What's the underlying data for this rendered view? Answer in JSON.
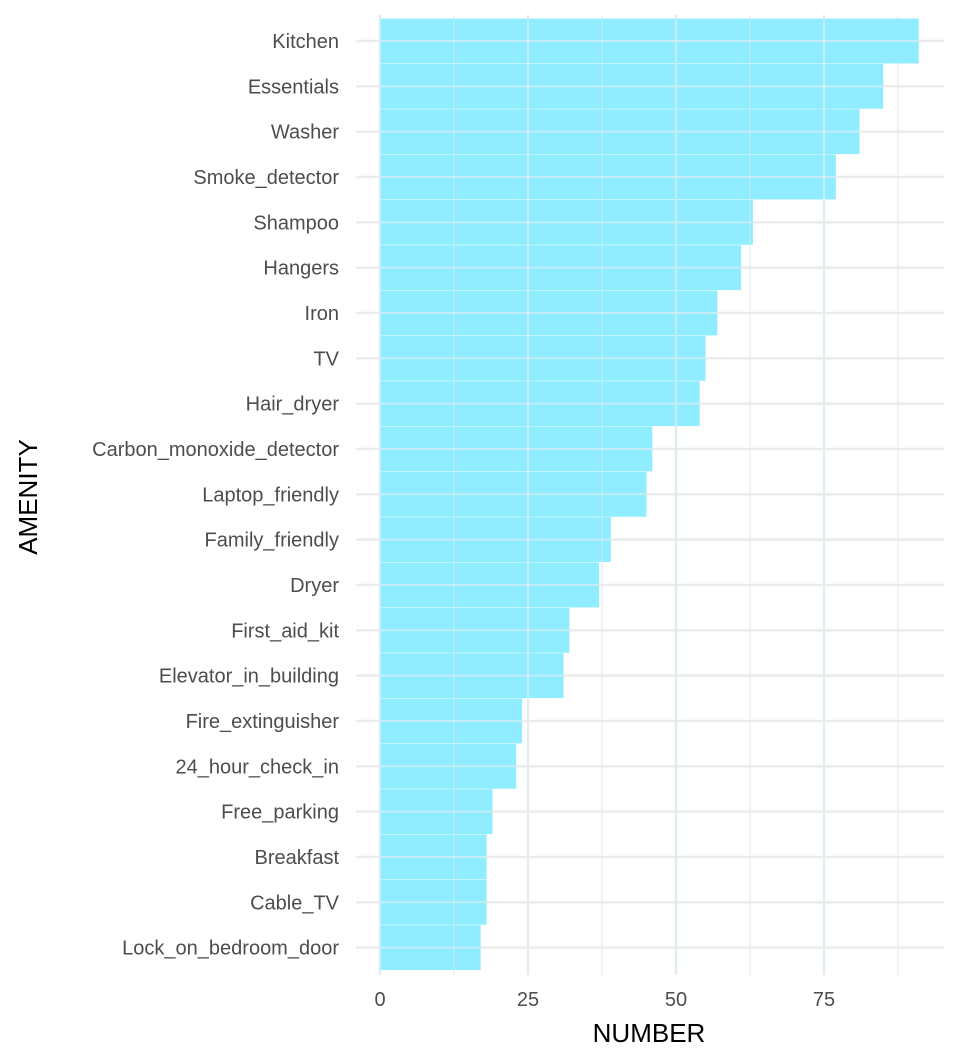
{
  "chart_data": {
    "type": "bar",
    "orientation": "horizontal",
    "title": "",
    "xlabel": "NUMBER",
    "ylabel": "AMENITY",
    "xlim": [
      0,
      95
    ],
    "x_ticks": [
      0,
      25,
      50,
      75
    ],
    "x_tick_labels": [
      "0",
      "25",
      "50",
      "75"
    ],
    "grid": true,
    "bar_color": "#8AECFF",
    "grid_color": "#EBEBEB",
    "categories": [
      "Kitchen",
      "Essentials",
      "Washer",
      "Smoke_detector",
      "Shampoo",
      "Hangers",
      "Iron",
      "TV",
      "Hair_dryer",
      "Carbon_monoxide_detector",
      "Laptop_friendly",
      "Family_friendly",
      "Dryer",
      "First_aid_kit",
      "Elevator_in_building",
      "Fire_extinguisher",
      "24_hour_check_in",
      "Free_parking",
      "Breakfast",
      "Cable_TV",
      "Lock_on_bedroom_door"
    ],
    "values": [
      91,
      85,
      81,
      77,
      63,
      61,
      57,
      55,
      54,
      46,
      45,
      39,
      37,
      32,
      31,
      24,
      23,
      19,
      18,
      18,
      17
    ]
  }
}
